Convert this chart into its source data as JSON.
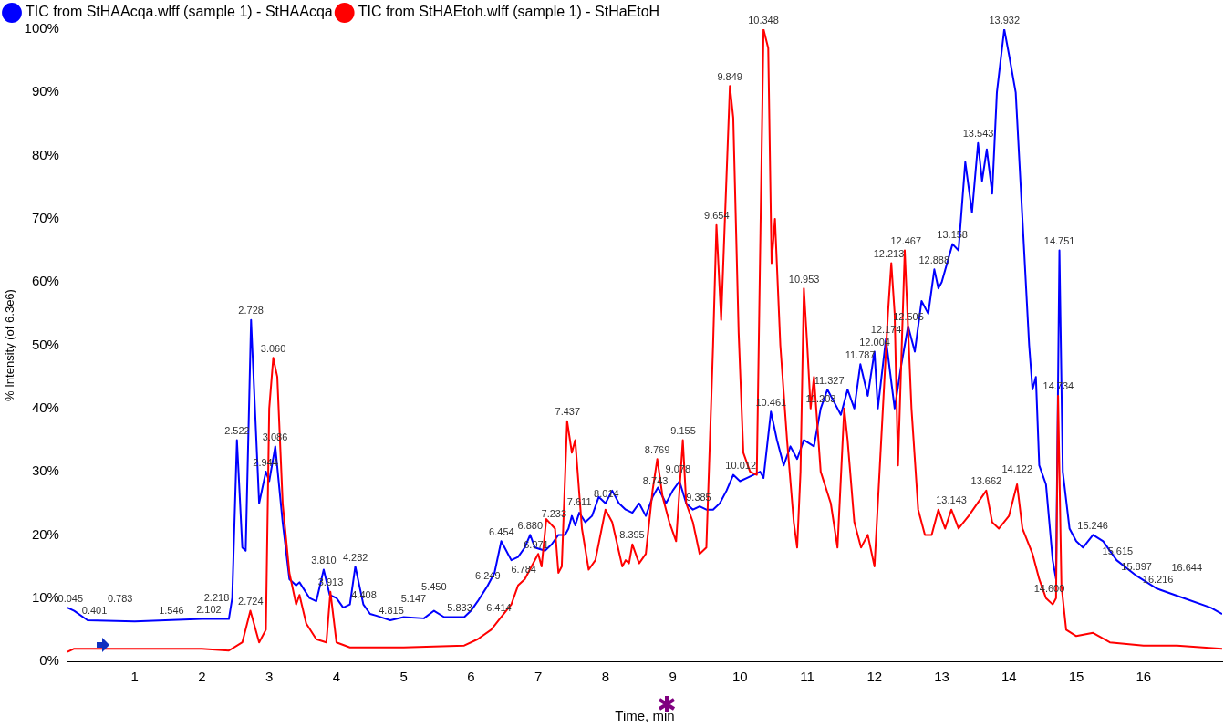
{
  "chart_data": {
    "type": "line",
    "xlabel": "Time, min",
    "ylabel": "% Intensity (of 6.3e6)",
    "xlim": [
      0,
      17.17
    ],
    "xticks": [
      1,
      2,
      3,
      4,
      5,
      6,
      7,
      8,
      9,
      10,
      11,
      12,
      13,
      14,
      15,
      16
    ],
    "ylim": [
      0,
      100
    ],
    "yticks": [
      {
        "value": 0,
        "label": "0%"
      },
      {
        "value": 10,
        "label": "10%"
      },
      {
        "value": 20,
        "label": "20%"
      },
      {
        "value": 30,
        "label": "30%"
      },
      {
        "value": 40,
        "label": "40%"
      },
      {
        "value": 50,
        "label": "50%"
      },
      {
        "value": 60,
        "label": "60%"
      },
      {
        "value": 70,
        "label": "70%"
      },
      {
        "value": 80,
        "label": "80%"
      },
      {
        "value": 90,
        "label": "90%"
      },
      {
        "value": 100,
        "label": "100%"
      }
    ],
    "grid": false,
    "legend": "top left",
    "marker": "none",
    "line_style": "solid",
    "series": [
      {
        "name": "TIC from StHAAcqa.wlff (sample 1) - StHAAcqa",
        "color": "#0000ff",
        "x": [
          0,
          0.1,
          0.3,
          1,
          2,
          2.4,
          2.45,
          2.52,
          2.6,
          2.65,
          2.73,
          2.85,
          2.95,
          3.0,
          3.09,
          3.2,
          3.3,
          3.4,
          3.45,
          3.6,
          3.7,
          3.81,
          3.9,
          4.0,
          4.1,
          4.2,
          4.28,
          4.4,
          4.5,
          4.6,
          4.8,
          5.0,
          5.3,
          5.45,
          5.6,
          5.9,
          6.0,
          6.1,
          6.25,
          6.35,
          6.45,
          6.55,
          6.6,
          6.7,
          6.8,
          6.88,
          6.95,
          7.1,
          7.2,
          7.3,
          7.4,
          7.45,
          7.5,
          7.55,
          7.61,
          7.7,
          7.8,
          7.9,
          8.0,
          8.1,
          8.2,
          8.3,
          8.4,
          8.5,
          8.6,
          8.7,
          8.78,
          8.9,
          9.0,
          9.1,
          9.2,
          9.3,
          9.4,
          9.5,
          9.6,
          9.7,
          9.8,
          9.9,
          10.0,
          10.1,
          10.2,
          10.3,
          10.35,
          10.46,
          10.55,
          10.65,
          10.75,
          10.85,
          10.95,
          11.1,
          11.2,
          11.3,
          11.4,
          11.5,
          11.6,
          11.7,
          11.79,
          11.9,
          12.0,
          12.05,
          12.17,
          12.3,
          12.4,
          12.5,
          12.6,
          12.7,
          12.8,
          12.89,
          12.95,
          13.0,
          13.16,
          13.25,
          13.35,
          13.45,
          13.54,
          13.6,
          13.67,
          13.75,
          13.82,
          13.93,
          14.0,
          14.1,
          14.2,
          14.3,
          14.35,
          14.4,
          14.45,
          14.55,
          14.65,
          14.7,
          14.75,
          14.8,
          14.9,
          15.0,
          15.1,
          15.25,
          15.4,
          15.6,
          15.9,
          16.2,
          16.6,
          17.0,
          17.17
        ],
        "values": [
          8.5,
          8,
          6.5,
          6.3,
          6.7,
          6.7,
          10,
          35,
          18,
          17.5,
          54,
          25,
          30,
          28.5,
          34,
          22,
          13,
          12,
          12.5,
          10,
          9.5,
          14.5,
          10.5,
          10,
          8.5,
          9,
          15,
          9,
          7.5,
          7.2,
          6.5,
          7,
          6.8,
          8,
          7,
          7,
          8,
          9.5,
          12,
          14,
          19,
          17,
          16,
          16.5,
          18,
          20,
          18,
          17.5,
          18.5,
          20,
          20,
          21,
          23,
          21.5,
          23.5,
          22,
          23,
          26,
          25,
          27,
          25,
          24,
          23.5,
          25,
          23,
          26,
          27.5,
          25,
          27,
          28.5,
          25,
          24,
          24.5,
          24,
          24,
          25,
          27,
          29.5,
          28.5,
          29,
          29.5,
          30,
          29,
          39.5,
          35,
          31,
          34,
          32,
          35,
          34,
          40,
          43,
          41,
          39,
          43,
          40,
          47,
          42,
          49,
          40,
          51,
          40,
          47,
          53,
          49,
          57,
          55,
          62,
          59,
          60,
          66,
          65,
          79,
          71,
          82,
          76,
          81,
          74,
          90,
          100,
          96,
          90,
          70,
          50,
          43,
          45,
          31,
          28,
          16,
          13,
          65,
          30,
          21,
          19,
          18,
          20,
          19,
          16,
          13.5,
          11.5,
          10,
          8.5,
          7.5
        ]
      },
      {
        "name": "TIC from StHAEtoh.wlff (sample 1) - StHaEtoH",
        "color": "#ff0000",
        "x": [
          0,
          0.1,
          1,
          2,
          2.4,
          2.6,
          2.72,
          2.85,
          2.95,
          3.0,
          3.06,
          3.12,
          3.2,
          3.3,
          3.4,
          3.45,
          3.55,
          3.7,
          3.85,
          3.91,
          4.0,
          4.2,
          5,
          5.9,
          6.1,
          6.3,
          6.45,
          6.6,
          6.7,
          6.8,
          6.9,
          7.0,
          7.05,
          7.12,
          7.25,
          7.3,
          7.35,
          7.43,
          7.5,
          7.55,
          7.65,
          7.75,
          7.85,
          8.0,
          8.1,
          8.25,
          8.3,
          8.35,
          8.4,
          8.5,
          8.6,
          8.7,
          8.77,
          8.85,
          8.95,
          9.05,
          9.15,
          9.2,
          9.3,
          9.4,
          9.5,
          9.6,
          9.65,
          9.72,
          9.85,
          9.9,
          9.98,
          10.05,
          10.15,
          10.25,
          10.35,
          10.42,
          10.47,
          10.52,
          10.6,
          10.7,
          10.8,
          10.85,
          10.9,
          10.95,
          11.0,
          11.05,
          11.1,
          11.2,
          11.35,
          11.45,
          11.55,
          11.6,
          11.7,
          11.8,
          11.9,
          12.0,
          12.1,
          12.2,
          12.25,
          12.3,
          12.35,
          12.45,
          12.55,
          12.65,
          12.75,
          12.85,
          12.95,
          13.05,
          13.143,
          13.25,
          13.4,
          13.662,
          13.75,
          13.85,
          14.0,
          14.12,
          14.2,
          14.35,
          14.45,
          14.55,
          14.65,
          14.7,
          14.73,
          14.78,
          14.85,
          15.0,
          15.25,
          15.5,
          16,
          16.5,
          17.17
        ],
        "values": [
          1.5,
          2,
          2,
          2,
          1.7,
          3,
          8,
          3,
          5,
          40,
          48,
          45,
          25,
          14,
          9,
          10.5,
          6,
          3.5,
          3,
          11,
          3,
          2.2,
          2.2,
          2.5,
          3.5,
          5,
          7,
          9,
          12,
          13,
          15,
          17,
          15,
          22.5,
          21,
          14,
          15,
          38,
          33,
          35,
          21,
          14.5,
          16,
          24,
          22,
          15,
          16,
          15.5,
          18.5,
          15.5,
          17,
          27,
          32,
          26,
          22,
          19,
          35,
          25,
          22,
          17,
          18,
          50,
          69,
          54,
          91,
          86,
          52,
          33,
          30,
          29.5,
          100,
          97,
          63,
          70,
          50,
          35,
          22,
          18,
          30,
          59,
          50,
          40,
          45,
          30,
          25,
          18,
          40,
          35,
          22,
          18,
          20,
          15,
          35,
          55,
          63,
          55,
          31,
          65,
          40,
          24,
          20,
          20,
          24,
          21,
          24,
          21,
          23,
          27,
          22,
          21,
          23,
          28,
          21,
          17,
          13,
          10,
          9,
          10,
          42,
          12,
          5,
          4,
          4.5,
          3,
          2.5,
          2.5,
          2
        ]
      }
    ],
    "annotations": [
      {
        "text": "0.045",
        "x": 0.045,
        "y": 8.5
      },
      {
        "text": "0.401",
        "x": 0.401,
        "y": 6.5
      },
      {
        "text": "0.783",
        "x": 0.783,
        "y": 6.3
      },
      {
        "text": "1.546",
        "x": 1.546,
        "y": 6.5
      },
      {
        "text": "2.102",
        "x": 2.102,
        "y": 6.7
      },
      {
        "text": "2.218",
        "x": 2.218,
        "y": 6.7
      },
      {
        "text": "2.522",
        "x": 2.522,
        "y": 35
      },
      {
        "text": "2.728",
        "x": 2.728,
        "y": 54
      },
      {
        "text": "2.724",
        "x": 2.724,
        "y": 8
      },
      {
        "text": "2.944",
        "x": 2.944,
        "y": 30
      },
      {
        "text": "3.060",
        "x": 3.06,
        "y": 48
      },
      {
        "text": "3.086",
        "x": 3.086,
        "y": 34
      },
      {
        "text": "3.810",
        "x": 3.81,
        "y": 14.5
      },
      {
        "text": "3.913",
        "x": 3.913,
        "y": 11
      },
      {
        "text": "4.282",
        "x": 4.282,
        "y": 15
      },
      {
        "text": "4.408",
        "x": 4.408,
        "y": 9
      },
      {
        "text": "4.815",
        "x": 4.815,
        "y": 6.5
      },
      {
        "text": "5.147",
        "x": 5.147,
        "y": 7
      },
      {
        "text": "5.450",
        "x": 5.45,
        "y": 8
      },
      {
        "text": "5.833",
        "x": 5.833,
        "y": 7
      },
      {
        "text": "6.249",
        "x": 6.249,
        "y": 12
      },
      {
        "text": "6.414",
        "x": 6.414,
        "y": 7
      },
      {
        "text": "6.454",
        "x": 6.454,
        "y": 19
      },
      {
        "text": "6.784",
        "x": 6.784,
        "y": 13
      },
      {
        "text": "6.880",
        "x": 6.88,
        "y": 20
      },
      {
        "text": "6.971",
        "x": 6.971,
        "y": 17
      },
      {
        "text": "7.233",
        "x": 7.233,
        "y": 21
      },
      {
        "text": "7.437",
        "x": 7.437,
        "y": 38
      },
      {
        "text": "7.611",
        "x": 7.611,
        "y": 23.5
      },
      {
        "text": "8.014",
        "x": 8.014,
        "y": 25
      },
      {
        "text": "8.395",
        "x": 8.395,
        "y": 18.5
      },
      {
        "text": "8.743",
        "x": 8.743,
        "y": 27
      },
      {
        "text": "8.769",
        "x": 8.769,
        "y": 32
      },
      {
        "text": "9.078",
        "x": 9.078,
        "y": 28.5
      },
      {
        "text": "9.155",
        "x": 9.155,
        "y": 35
      },
      {
        "text": "9.385",
        "x": 9.385,
        "y": 24.5
      },
      {
        "text": "9.654",
        "x": 9.654,
        "y": 69
      },
      {
        "text": "9.849",
        "x": 9.849,
        "y": 91
      },
      {
        "text": "10.012",
        "x": 10.012,
        "y": 29.5
      },
      {
        "text": "10.348",
        "x": 10.348,
        "y": 100
      },
      {
        "text": "10.461",
        "x": 10.461,
        "y": 39.5
      },
      {
        "text": "10.953",
        "x": 10.953,
        "y": 59
      },
      {
        "text": "11.203",
        "x": 11.203,
        "y": 40
      },
      {
        "text": "11.327",
        "x": 11.327,
        "y": 43
      },
      {
        "text": "11.787",
        "x": 11.787,
        "y": 47
      },
      {
        "text": "12.004",
        "x": 12.004,
        "y": 49
      },
      {
        "text": "12.174",
        "x": 12.174,
        "y": 51
      },
      {
        "text": "12.213",
        "x": 12.213,
        "y": 63
      },
      {
        "text": "12.467",
        "x": 12.467,
        "y": 65
      },
      {
        "text": "12.505",
        "x": 12.505,
        "y": 53
      },
      {
        "text": "12.888",
        "x": 12.888,
        "y": 62
      },
      {
        "text": "13.143",
        "x": 13.143,
        "y": 24
      },
      {
        "text": "13.158",
        "x": 13.158,
        "y": 66
      },
      {
        "text": "13.543",
        "x": 13.543,
        "y": 82
      },
      {
        "text": "13.662",
        "x": 13.662,
        "y": 27
      },
      {
        "text": "13.932",
        "x": 13.932,
        "y": 100
      },
      {
        "text": "14.122",
        "x": 14.122,
        "y": 28
      },
      {
        "text": "14.600",
        "x": 14.6,
        "y": 10
      },
      {
        "text": "14.734",
        "x": 14.734,
        "y": 42
      },
      {
        "text": "14.751",
        "x": 14.751,
        "y": 65
      },
      {
        "text": "15.246",
        "x": 15.246,
        "y": 20
      },
      {
        "text": "15.615",
        "x": 15.615,
        "y": 16
      },
      {
        "text": "15.897",
        "x": 15.897,
        "y": 13.5
      },
      {
        "text": "16.216",
        "x": 16.216,
        "y": 11.5
      },
      {
        "text": "16.644",
        "x": 16.644,
        "y": 10
      }
    ]
  }
}
